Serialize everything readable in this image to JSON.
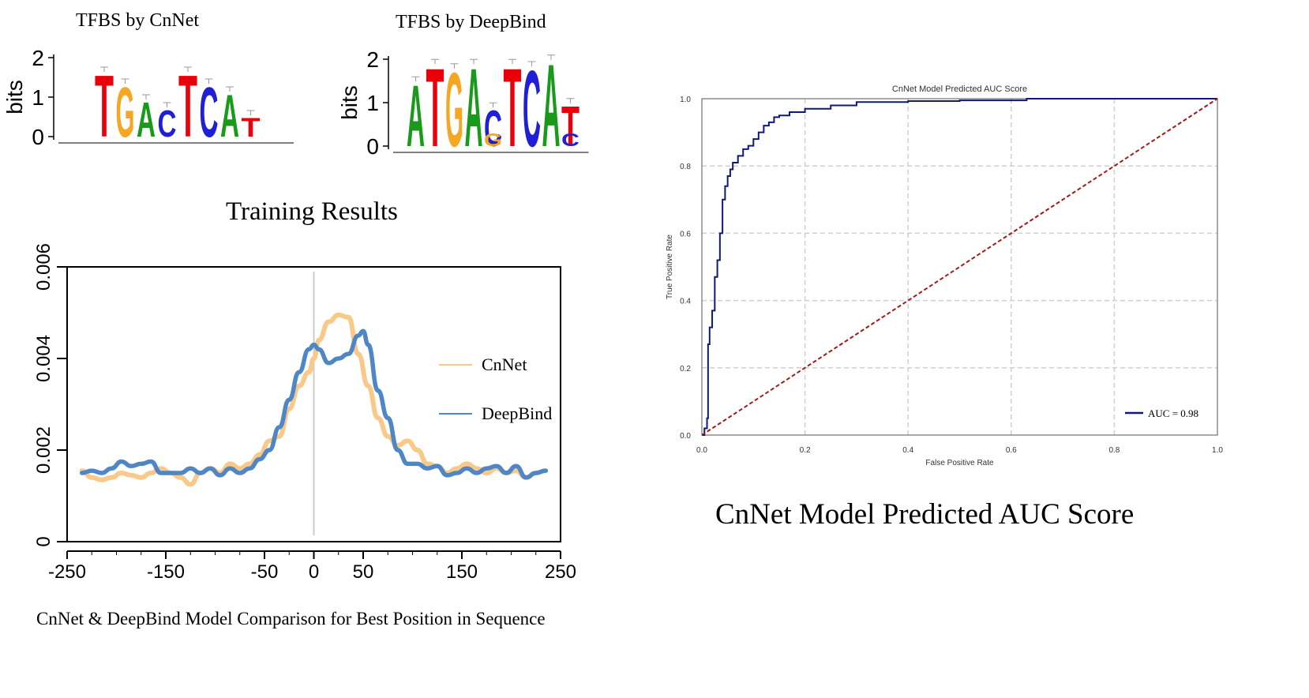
{
  "logos": [
    {
      "title": "TFBS by CnNet",
      "ylabel": "bits",
      "yticks": [
        "2",
        "1",
        "0"
      ],
      "ymax": 2,
      "letters": [
        {
          "char": "T",
          "color": "#e8000b",
          "height": 1.6
        },
        {
          "char": "G",
          "color": "#f5a623",
          "height": 1.3
        },
        {
          "char": "A",
          "color": "#1a9a1a",
          "height": 0.9
        },
        {
          "char": "C",
          "color": "#1f1fd6",
          "height": 0.7
        },
        {
          "char": "T",
          "color": "#e8000b",
          "height": 1.6
        },
        {
          "char": "C",
          "color": "#1f1fd6",
          "height": 1.3
        },
        {
          "char": "A",
          "color": "#1a9a1a",
          "height": 1.1
        },
        {
          "char": "T",
          "color": "#e8000b",
          "height": 0.5
        }
      ]
    },
    {
      "title": "TFBS by DeepBind",
      "ylabel": "bits",
      "yticks": [
        "2",
        "1",
        "0"
      ],
      "ymax": 2,
      "letters": [
        {
          "char": "A",
          "color": "#1a9a1a",
          "height": 1.45
        },
        {
          "char": "T",
          "color": "#e8000b",
          "height": 1.85
        },
        {
          "char": "G",
          "color": "#f5a623",
          "height": 1.75
        },
        {
          "char": "A",
          "color": "#1a9a1a",
          "height": 1.85
        },
        {
          "char": "C",
          "color": "#1f1fd6",
          "height": 0.85
        },
        {
          "char": "T",
          "color": "#e8000b",
          "height": 1.85
        },
        {
          "char": "C",
          "color": "#1f1fd6",
          "height": 1.8
        },
        {
          "char": "A",
          "color": "#1a9a1a",
          "height": 1.95
        },
        {
          "char": "T",
          "color": "#e8000b",
          "height": 0.95
        }
      ],
      "small_letters": [
        {
          "index": 4,
          "char": "G",
          "color": "#f5a623",
          "height": 0.3
        },
        {
          "index": 8,
          "char": "C",
          "color": "#1f1fd6",
          "height": 0.3
        }
      ]
    }
  ],
  "training": {
    "heading": "Training Results",
    "caption": "CnNet & DeepBind Model Comparison for Best Position in Sequence"
  },
  "roc_caption": "CnNet Model Predicted AUC Score",
  "chart_data": [
    {
      "type": "line",
      "title": "",
      "xlabel": "",
      "ylabel": "",
      "xlim": [
        -250,
        250
      ],
      "ylim": [
        0,
        0.006
      ],
      "xticks": [
        "-250",
        "-150",
        "-50",
        "0",
        "50",
        "150",
        "250"
      ],
      "yticks": [
        "0",
        "0.002",
        "0.004",
        "0.006"
      ],
      "vline_x": 0,
      "legend": "right",
      "series": [
        {
          "name": "CnNet",
          "color": "#f9c98a",
          "x": [
            -235,
            -225,
            -215,
            -205,
            -195,
            -185,
            -175,
            -165,
            -155,
            -145,
            -135,
            -125,
            -115,
            -105,
            -95,
            -85,
            -75,
            -65,
            -55,
            -45,
            -35,
            -25,
            -15,
            -5,
            0,
            5,
            15,
            25,
            35,
            45,
            55,
            65,
            75,
            85,
            95,
            105,
            115,
            125,
            135,
            145,
            155,
            165,
            175,
            185,
            195,
            205,
            215,
            225,
            235
          ],
          "y": [
            0.00155,
            0.0014,
            0.00135,
            0.0014,
            0.0015,
            0.00145,
            0.0014,
            0.0015,
            0.0016,
            0.0015,
            0.0014,
            0.00125,
            0.0015,
            0.0016,
            0.0015,
            0.0017,
            0.0016,
            0.0017,
            0.0019,
            0.0022,
            0.0023,
            0.0029,
            0.0034,
            0.0037,
            0.004,
            0.0044,
            0.0048,
            0.00495,
            0.0049,
            0.0041,
            0.0034,
            0.0027,
            0.0023,
            0.0021,
            0.0022,
            0.002,
            0.0017,
            0.00165,
            0.0015,
            0.0016,
            0.0017,
            0.0016,
            0.0015,
            0.0016,
            0.0015,
            0.00155,
            0.0014,
            0.0015,
            0.00155
          ]
        },
        {
          "name": "DeepBind",
          "color": "#4f86c6",
          "x": [
            -235,
            -225,
            -215,
            -205,
            -195,
            -185,
            -175,
            -165,
            -155,
            -145,
            -135,
            -125,
            -115,
            -105,
            -95,
            -85,
            -75,
            -65,
            -55,
            -45,
            -35,
            -25,
            -15,
            -5,
            0,
            5,
            15,
            25,
            35,
            45,
            50,
            55,
            65,
            75,
            85,
            95,
            105,
            115,
            125,
            135,
            145,
            155,
            165,
            175,
            185,
            195,
            205,
            215,
            225,
            235
          ],
          "y": [
            0.0015,
            0.00155,
            0.0015,
            0.0016,
            0.00175,
            0.00165,
            0.0017,
            0.00175,
            0.0015,
            0.0015,
            0.0015,
            0.0016,
            0.0015,
            0.0016,
            0.00145,
            0.0016,
            0.0015,
            0.0016,
            0.0018,
            0.002,
            0.0025,
            0.0031,
            0.0037,
            0.0042,
            0.0043,
            0.0042,
            0.0039,
            0.004,
            0.0041,
            0.0045,
            0.0046,
            0.0043,
            0.0033,
            0.0027,
            0.002,
            0.0017,
            0.0017,
            0.0016,
            0.00165,
            0.00145,
            0.0015,
            0.0016,
            0.0015,
            0.0016,
            0.00165,
            0.0015,
            0.00165,
            0.0014,
            0.0015,
            0.00155
          ]
        }
      ]
    },
    {
      "type": "line",
      "title": "CnNet Model Predicted AUC Score",
      "xlabel": "False Positive Rate",
      "ylabel": "True Positive Rate",
      "xlim": [
        0,
        1
      ],
      "ylim": [
        0,
        1
      ],
      "xticks": [
        "0.0",
        "0.2",
        "0.4",
        "0.6",
        "0.8",
        "1.0"
      ],
      "yticks": [
        "0.0",
        "0.2",
        "0.4",
        "0.6",
        "0.8",
        "1.0"
      ],
      "grid": true,
      "legend": "bottom-right",
      "series": [
        {
          "name": "AUC = 0.98",
          "color": "#0d1a7a",
          "x": [
            0.0,
            0.005,
            0.01,
            0.012,
            0.015,
            0.02,
            0.025,
            0.03,
            0.035,
            0.04,
            0.045,
            0.05,
            0.055,
            0.06,
            0.07,
            0.08,
            0.09,
            0.1,
            0.11,
            0.12,
            0.13,
            0.14,
            0.15,
            0.17,
            0.2,
            0.25,
            0.3,
            0.4,
            0.5,
            0.63,
            0.7,
            0.8,
            0.9,
            1.0
          ],
          "y": [
            0.0,
            0.02,
            0.05,
            0.27,
            0.32,
            0.37,
            0.47,
            0.52,
            0.6,
            0.7,
            0.74,
            0.77,
            0.79,
            0.81,
            0.83,
            0.85,
            0.86,
            0.88,
            0.9,
            0.92,
            0.93,
            0.945,
            0.95,
            0.96,
            0.97,
            0.98,
            0.99,
            0.993,
            0.995,
            1.0,
            1.0,
            1.0,
            1.0,
            1.0
          ]
        },
        {
          "name": "",
          "color": "#a01a1a",
          "dashed": true,
          "x": [
            0,
            1
          ],
          "y": [
            0,
            1
          ]
        }
      ]
    }
  ]
}
